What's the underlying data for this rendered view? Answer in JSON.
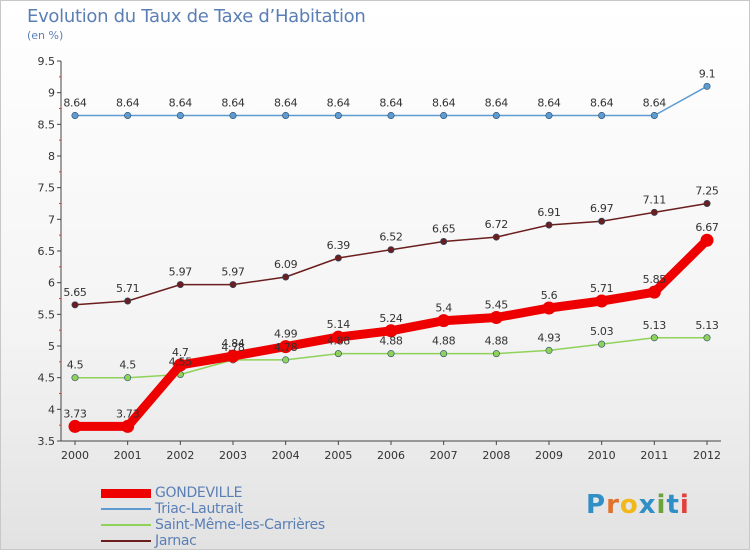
{
  "title": "Evolution du Taux de Taxe d’Habitation",
  "unit": "(en %)",
  "logo": {
    "text": "Proxiti",
    "letter_colors": [
      "#2f8fc6",
      "#e0722c",
      "#f1b817",
      "#2f8fc6",
      "#6aa53b",
      "#2f8fc6",
      "#e2403c"
    ]
  },
  "chart_data": {
    "type": "line",
    "x": [
      "2000",
      "2001",
      "2002",
      "2003",
      "2004",
      "2005",
      "2006",
      "2007",
      "2008",
      "2009",
      "2010",
      "2011",
      "2012"
    ],
    "ylim": [
      3.5,
      9.5
    ],
    "yticks": [
      "3.5",
      "4",
      "4.5",
      "5",
      "5.5",
      "6",
      "6.5",
      "7",
      "7.5",
      "8",
      "8.5",
      "9",
      "9.5"
    ],
    "grid": false,
    "legend_position": "bottom-left",
    "series": [
      {
        "name": "Triac-Lautrait",
        "color": "#5e9bd1",
        "values": [
          8.64,
          8.64,
          8.64,
          8.64,
          8.64,
          8.64,
          8.64,
          8.64,
          8.64,
          8.64,
          8.64,
          8.64,
          9.1
        ],
        "labels": [
          "8.64",
          "8.64",
          "8.64",
          "8.64",
          "8.64",
          "8.64",
          "8.64",
          "8.64",
          "8.64",
          "8.64",
          "8.64",
          "8.64",
          "9.1"
        ]
      },
      {
        "name": "Jarnac",
        "color": "#6b1e1e",
        "values": [
          5.65,
          5.71,
          5.97,
          5.97,
          6.09,
          6.39,
          6.52,
          6.65,
          6.72,
          6.91,
          6.97,
          7.11,
          7.25
        ],
        "labels": [
          "5.65",
          "5.71",
          "5.97",
          "5.97",
          "6.09",
          "6.39",
          "6.52",
          "6.65",
          "6.72",
          "6.91",
          "6.97",
          "7.11",
          "7.25"
        ]
      },
      {
        "name": "Saint-Même-les-Carrières",
        "color": "#8fd25a",
        "values": [
          4.5,
          4.5,
          4.55,
          4.78,
          4.78,
          4.88,
          4.88,
          4.88,
          4.88,
          4.93,
          5.03,
          5.13,
          5.13
        ],
        "labels": [
          "4.5",
          "4.5",
          "4.55",
          "4.78",
          "4.78",
          "4.88",
          "4.88",
          "4.88",
          "4.88",
          "4.93",
          "5.03",
          "5.13",
          "5.13"
        ]
      },
      {
        "name": "GONDEVILLE",
        "color": "#ee0000",
        "values": [
          3.73,
          3.73,
          4.7,
          4.84,
          4.99,
          5.14,
          5.24,
          5.4,
          5.45,
          5.6,
          5.71,
          5.85,
          6.67
        ],
        "labels": [
          "3.73",
          "3.73",
          "4.7",
          "4.84",
          "4.99",
          "5.14",
          "5.24",
          "5.4",
          "5.45",
          "5.6",
          "5.71",
          "5.85",
          "6.67"
        ]
      }
    ],
    "legend_order": [
      "GONDEVILLE",
      "Triac-Lautrait",
      "Saint-Même-les-Carrières",
      "Jarnac"
    ]
  }
}
